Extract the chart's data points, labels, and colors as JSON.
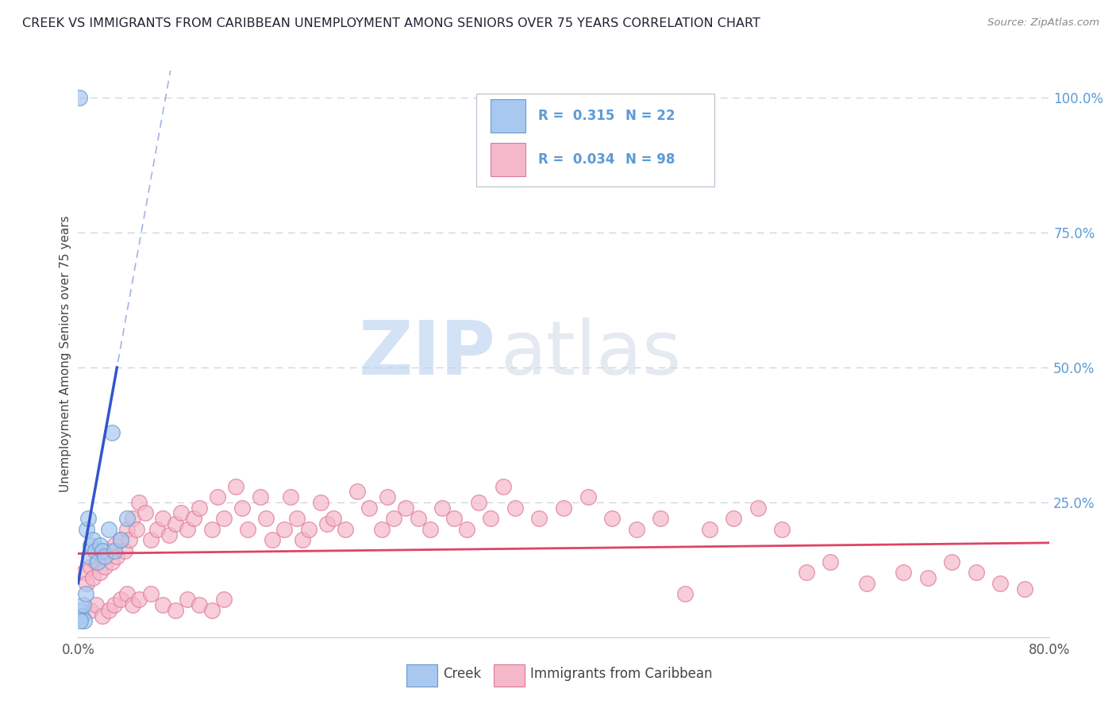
{
  "title": "CREEK VS IMMIGRANTS FROM CARIBBEAN UNEMPLOYMENT AMONG SENIORS OVER 75 YEARS CORRELATION CHART",
  "source": "Source: ZipAtlas.com",
  "ylabel": "Unemployment Among Seniors over 75 years",
  "xlim": [
    0,
    0.8
  ],
  "ylim": [
    0,
    1.05
  ],
  "yticks_right": [
    0.0,
    0.25,
    0.5,
    0.75,
    1.0
  ],
  "yticklabels_right": [
    "",
    "25.0%",
    "50.0%",
    "75.0%",
    "100.0%"
  ],
  "watermark_zip": "ZIP",
  "watermark_atlas": "atlas",
  "legend_r1": "R =  0.315",
  "legend_n1": "N = 22",
  "legend_r2": "R =  0.034",
  "legend_n2": "N = 98",
  "creek_color": "#a8c8f0",
  "caribbean_color": "#f5b8c8",
  "creek_edge": "#6699cc",
  "caribbean_edge": "#dd7799",
  "trend_blue": "#3355cc",
  "trend_pink": "#dd4466",
  "background": "#ffffff",
  "grid_color": "#ccccdd",
  "creek_scatter_x": [
    0.001,
    0.002,
    0.003,
    0.004,
    0.005,
    0.006,
    0.007,
    0.008,
    0.009,
    0.01,
    0.012,
    0.014,
    0.016,
    0.018,
    0.02,
    0.022,
    0.025,
    0.028,
    0.03,
    0.035,
    0.04,
    0.002
  ],
  "creek_scatter_y": [
    1.0,
    0.05,
    0.04,
    0.06,
    0.03,
    0.08,
    0.2,
    0.22,
    0.15,
    0.17,
    0.18,
    0.16,
    0.14,
    0.17,
    0.16,
    0.15,
    0.2,
    0.38,
    0.16,
    0.18,
    0.22,
    0.03
  ],
  "carib_scatter_x": [
    0.005,
    0.007,
    0.01,
    0.012,
    0.015,
    0.018,
    0.02,
    0.022,
    0.025,
    0.028,
    0.03,
    0.032,
    0.035,
    0.038,
    0.04,
    0.042,
    0.045,
    0.048,
    0.05,
    0.055,
    0.06,
    0.065,
    0.07,
    0.075,
    0.08,
    0.085,
    0.09,
    0.095,
    0.1,
    0.11,
    0.115,
    0.12,
    0.13,
    0.135,
    0.14,
    0.15,
    0.155,
    0.16,
    0.17,
    0.175,
    0.18,
    0.185,
    0.19,
    0.2,
    0.205,
    0.21,
    0.22,
    0.23,
    0.24,
    0.25,
    0.255,
    0.26,
    0.27,
    0.28,
    0.29,
    0.3,
    0.31,
    0.32,
    0.33,
    0.34,
    0.35,
    0.36,
    0.38,
    0.4,
    0.42,
    0.44,
    0.46,
    0.48,
    0.5,
    0.52,
    0.54,
    0.56,
    0.58,
    0.6,
    0.62,
    0.65,
    0.68,
    0.7,
    0.72,
    0.74,
    0.76,
    0.78,
    0.01,
    0.015,
    0.02,
    0.025,
    0.03,
    0.035,
    0.04,
    0.045,
    0.05,
    0.06,
    0.07,
    0.08,
    0.09,
    0.1,
    0.11,
    0.12
  ],
  "carib_scatter_y": [
    0.12,
    0.1,
    0.13,
    0.11,
    0.14,
    0.12,
    0.15,
    0.13,
    0.16,
    0.14,
    0.17,
    0.15,
    0.18,
    0.16,
    0.2,
    0.18,
    0.22,
    0.2,
    0.25,
    0.23,
    0.18,
    0.2,
    0.22,
    0.19,
    0.21,
    0.23,
    0.2,
    0.22,
    0.24,
    0.2,
    0.26,
    0.22,
    0.28,
    0.24,
    0.2,
    0.26,
    0.22,
    0.18,
    0.2,
    0.26,
    0.22,
    0.18,
    0.2,
    0.25,
    0.21,
    0.22,
    0.2,
    0.27,
    0.24,
    0.2,
    0.26,
    0.22,
    0.24,
    0.22,
    0.2,
    0.24,
    0.22,
    0.2,
    0.25,
    0.22,
    0.28,
    0.24,
    0.22,
    0.24,
    0.26,
    0.22,
    0.2,
    0.22,
    0.08,
    0.2,
    0.22,
    0.24,
    0.2,
    0.12,
    0.14,
    0.1,
    0.12,
    0.11,
    0.14,
    0.12,
    0.1,
    0.09,
    0.05,
    0.06,
    0.04,
    0.05,
    0.06,
    0.07,
    0.08,
    0.06,
    0.07,
    0.08,
    0.06,
    0.05,
    0.07,
    0.06,
    0.05,
    0.07
  ]
}
